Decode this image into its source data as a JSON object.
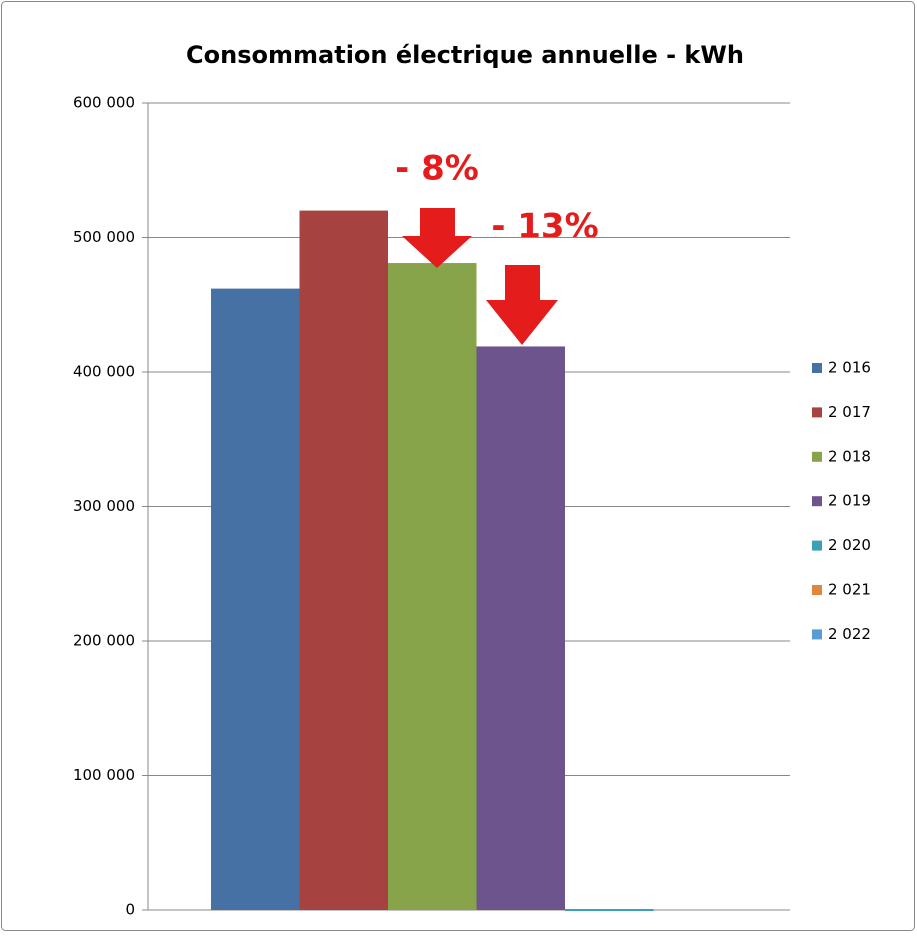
{
  "chart_data": {
    "type": "bar",
    "title": "Consommation électrique annuelle - kWh",
    "categories": [
      null
    ],
    "series": [
      {
        "name": "2 016",
        "color": "#4571a5",
        "values": [
          462000
        ]
      },
      {
        "name": "2 017",
        "color": "#a6423f",
        "values": [
          520000
        ]
      },
      {
        "name": "2 018",
        "color": "#87a44a",
        "values": [
          481000
        ]
      },
      {
        "name": "2 019",
        "color": "#6e548d",
        "values": [
          419000
        ]
      },
      {
        "name": "2 020",
        "color": "#3c9fb5",
        "values": [
          0
        ]
      },
      {
        "name": "2 021",
        "color": "#e0873c",
        "values": [
          null
        ]
      },
      {
        "name": "2 022",
        "color": "#5b9bd5",
        "values": [
          null
        ]
      }
    ],
    "ylim": [
      0,
      600000
    ],
    "yticks": [
      0,
      {
        "value": 100000,
        "label": "100 000"
      },
      {
        "value": 200000,
        "label": "200 000"
      },
      {
        "value": 300000,
        "label": "300 000"
      },
      {
        "value": 400000,
        "label": "400 000"
      },
      {
        "value": 500000,
        "label": "500 000"
      },
      {
        "value": 600000,
        "label": "600 000"
      }
    ],
    "grid": true,
    "legend": "right",
    "annotations": [
      "- 8%",
      "- 13%"
    ]
  }
}
